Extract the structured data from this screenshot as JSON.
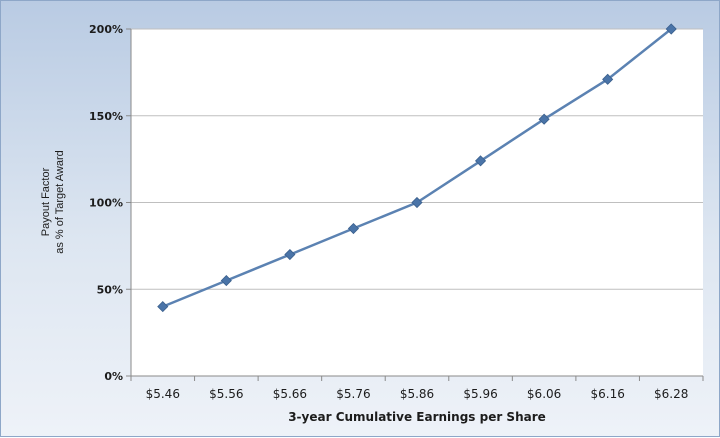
{
  "chart_data": {
    "type": "line",
    "title": "",
    "xlabel": "3-year Cumulative Earnings per Share",
    "ylabel_lines": [
      "Payout Factor",
      "as % of Target Award"
    ],
    "categories": [
      "$5.46",
      "$5.56",
      "$5.66",
      "$5.76",
      "$5.86",
      "$5.96",
      "$6.06",
      "$6.16",
      "$6.28"
    ],
    "series": [
      {
        "values": [
          40,
          55,
          70,
          85,
          100,
          124,
          148,
          171,
          200
        ]
      }
    ],
    "yticks": [
      0,
      50,
      100,
      150,
      200
    ],
    "ytick_labels": [
      "0%",
      "50%",
      "100%",
      "150%",
      "200%"
    ],
    "ylim": [
      0,
      200
    ],
    "grid": true,
    "legend": "none",
    "colors": {
      "line": "#5b82b2",
      "marker": "#4a74a8",
      "grid": "#bfbfbf",
      "axis": "#8a8a8a"
    }
  }
}
